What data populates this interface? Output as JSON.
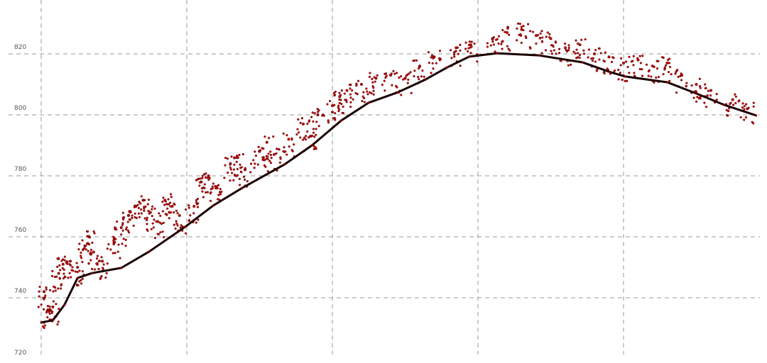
{
  "chart_data": {
    "type": "scatter",
    "title": "",
    "xlabel": "",
    "ylabel": "",
    "ylim": [
      720,
      830
    ],
    "xlim": [
      -0.2,
      4.95
    ],
    "yticks": [
      720,
      740,
      760,
      780,
      800,
      820
    ],
    "ytick_labels": [
      "720",
      "740",
      "760",
      "780",
      "800",
      "820"
    ],
    "xgrid_positions": [
      0,
      1,
      2,
      3,
      4
    ],
    "grid": true,
    "grid_style": "dashed",
    "colors": {
      "ground": "#1a0000",
      "vegetation": "#cc0000",
      "grid": "#999999"
    },
    "series": [
      {
        "role": "ground",
        "points": [
          [
            0,
            731.9
          ],
          [
            0.08,
            732.6
          ],
          [
            0.16,
            737.7
          ],
          [
            0.25,
            746.5
          ],
          [
            0.35,
            748.1
          ],
          [
            0.55,
            749.8
          ],
          [
            0.74,
            755.1
          ],
          [
            0.99,
            763.3
          ],
          [
            1.18,
            770.2
          ],
          [
            1.38,
            776.0
          ],
          [
            1.67,
            783.7
          ],
          [
            1.86,
            790.0
          ],
          [
            2.06,
            798.1
          ],
          [
            2.25,
            804.0
          ],
          [
            2.45,
            807.4
          ],
          [
            2.64,
            811.6
          ],
          [
            2.79,
            815.6
          ],
          [
            2.94,
            819.1
          ],
          [
            3.13,
            820.2
          ],
          [
            3.42,
            819.5
          ],
          [
            3.72,
            817.2
          ],
          [
            3.91,
            814.0
          ],
          [
            4.01,
            812.6
          ],
          [
            4.3,
            810.7
          ],
          [
            4.5,
            807.0
          ],
          [
            4.69,
            803.3
          ],
          [
            4.91,
            799.8
          ]
        ]
      },
      {
        "role": "vegetation",
        "points": [
          [
            0.02,
            742
          ],
          [
            0.05,
            736
          ],
          [
            0.08,
            737
          ],
          [
            0.12,
            748
          ],
          [
            0.15,
            751
          ],
          [
            0.2,
            752
          ],
          [
            0.25,
            750
          ],
          [
            0.3,
            757
          ],
          [
            0.33,
            760
          ],
          [
            0.36,
            755
          ],
          [
            0.42,
            752
          ],
          [
            0.5,
            758
          ],
          [
            0.55,
            763
          ],
          [
            0.6,
            767
          ],
          [
            0.65,
            770
          ],
          [
            0.7,
            772
          ],
          [
            0.75,
            768
          ],
          [
            0.8,
            765
          ],
          [
            0.85,
            772
          ],
          [
            0.9,
            770
          ],
          [
            0.95,
            767
          ],
          [
            1.05,
            770
          ],
          [
            1.1,
            778
          ],
          [
            1.15,
            780
          ],
          [
            1.2,
            776
          ],
          [
            1.3,
            784
          ],
          [
            1.35,
            786
          ],
          [
            1.4,
            782
          ],
          [
            1.5,
            788
          ],
          [
            1.55,
            791
          ],
          [
            1.6,
            787
          ],
          [
            1.7,
            792
          ],
          [
            1.8,
            797
          ],
          [
            1.85,
            793
          ],
          [
            1.9,
            800
          ],
          [
            2.0,
            803
          ],
          [
            2.05,
            806
          ],
          [
            2.1,
            808
          ],
          [
            2.2,
            810
          ],
          [
            2.3,
            812
          ],
          [
            2.4,
            813
          ],
          [
            2.5,
            812
          ],
          [
            2.6,
            816
          ],
          [
            2.7,
            819
          ],
          [
            2.85,
            822
          ],
          [
            2.95,
            823
          ],
          [
            3.1,
            825
          ],
          [
            3.2,
            827
          ],
          [
            3.3,
            828
          ],
          [
            3.4,
            826
          ],
          [
            3.5,
            825
          ],
          [
            3.6,
            822
          ],
          [
            3.7,
            823
          ],
          [
            3.8,
            820
          ],
          [
            3.9,
            819
          ],
          [
            4.0,
            817
          ],
          [
            4.1,
            818
          ],
          [
            4.2,
            816
          ],
          [
            4.3,
            817
          ],
          [
            4.4,
            813
          ],
          [
            4.5,
            810
          ],
          [
            4.6,
            808
          ],
          [
            4.75,
            805
          ],
          [
            4.85,
            802
          ]
        ]
      }
    ]
  }
}
